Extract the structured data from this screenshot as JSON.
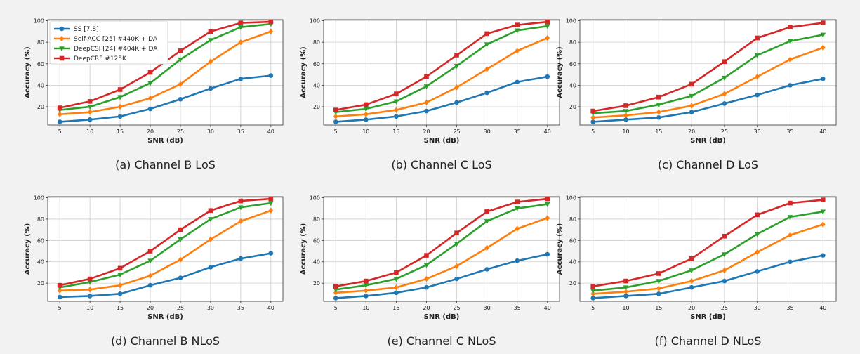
{
  "legend": [
    {
      "name": "SS [7,8]",
      "color": "#1f77b4",
      "marker": "circle"
    },
    {
      "name": "Self-ACC [25] #440K + DA",
      "color": "#ff7f0e",
      "marker": "diamond"
    },
    {
      "name": "DeepCSI [24] #404K + DA",
      "color": "#2ca02c",
      "marker": "triangle-down"
    },
    {
      "name": "DeepCRF #125K",
      "color": "#d62728",
      "marker": "square"
    }
  ],
  "chart_data": [
    {
      "type": "line",
      "caption": "(a) Channel B LoS",
      "xlabel": "SNR (dB)",
      "ylabel": "Accuracy (%)",
      "x": [
        5,
        10,
        15,
        20,
        25,
        30,
        35,
        40
      ],
      "xlim": [
        3,
        42
      ],
      "ylim": [
        3,
        101
      ],
      "yticks": [
        20,
        40,
        60,
        80,
        100
      ],
      "grid": true,
      "legend_position": "top-left",
      "series": [
        {
          "name": "SS [7,8]",
          "values": [
            6,
            8,
            11,
            18,
            27,
            37,
            46,
            49
          ]
        },
        {
          "name": "Self-ACC [25] #440K + DA",
          "values": [
            13,
            15,
            20,
            28,
            41,
            62,
            80,
            90
          ]
        },
        {
          "name": "DeepCSI [24] #404K + DA",
          "values": [
            17,
            20,
            29,
            42,
            64,
            82,
            94,
            97
          ]
        },
        {
          "name": "DeepCRF #125K",
          "values": [
            19,
            25,
            36,
            52,
            72,
            90,
            98,
            99
          ]
        }
      ]
    },
    {
      "type": "line",
      "caption": "(b) Channel C LoS",
      "xlabel": "SNR (dB)",
      "ylabel": "Accuracy (%)",
      "x": [
        5,
        10,
        15,
        20,
        25,
        30,
        35,
        40
      ],
      "xlim": [
        3,
        42
      ],
      "ylim": [
        3,
        101
      ],
      "yticks": [
        20,
        40,
        60,
        80,
        100
      ],
      "grid": true,
      "series": [
        {
          "name": "SS [7,8]",
          "values": [
            6,
            8,
            11,
            16,
            24,
            33,
            43,
            48
          ]
        },
        {
          "name": "Self-ACC [25] #440K + DA",
          "values": [
            11,
            13,
            17,
            24,
            38,
            55,
            72,
            84
          ]
        },
        {
          "name": "DeepCSI [24] #404K + DA",
          "values": [
            15,
            18,
            25,
            39,
            58,
            78,
            91,
            95
          ]
        },
        {
          "name": "DeepCRF #125K",
          "values": [
            17,
            22,
            32,
            48,
            68,
            88,
            96,
            99
          ]
        }
      ]
    },
    {
      "type": "line",
      "caption": "(c) Channel D LoS",
      "xlabel": "SNR (dB)",
      "ylabel": "Accuracy (%)",
      "x": [
        5,
        10,
        15,
        20,
        25,
        30,
        35,
        40
      ],
      "xlim": [
        3,
        42
      ],
      "ylim": [
        3,
        101
      ],
      "yticks": [
        20,
        40,
        60,
        80,
        100
      ],
      "grid": true,
      "series": [
        {
          "name": "SS [7,8]",
          "values": [
            6,
            8,
            10,
            15,
            23,
            31,
            40,
            46
          ]
        },
        {
          "name": "Self-ACC [25] #440K + DA",
          "values": [
            10,
            12,
            15,
            21,
            32,
            48,
            64,
            75
          ]
        },
        {
          "name": "DeepCSI [24] #404K + DA",
          "values": [
            14,
            16,
            22,
            30,
            47,
            68,
            81,
            87
          ]
        },
        {
          "name": "DeepCRF #125K",
          "values": [
            16,
            21,
            29,
            41,
            62,
            84,
            94,
            98
          ]
        }
      ]
    },
    {
      "type": "line",
      "caption": "(d) Channel B NLoS",
      "xlabel": "SNR (dB)",
      "ylabel": "Accuracy (%)",
      "x": [
        5,
        10,
        15,
        20,
        25,
        30,
        35,
        40
      ],
      "xlim": [
        3,
        42
      ],
      "ylim": [
        3,
        101
      ],
      "yticks": [
        20,
        40,
        60,
        80,
        100
      ],
      "grid": true,
      "series": [
        {
          "name": "SS [7,8]",
          "values": [
            7,
            8,
            10,
            18,
            25,
            35,
            43,
            48
          ]
        },
        {
          "name": "Self-ACC [25] #440K + DA",
          "values": [
            13,
            14,
            18,
            27,
            42,
            61,
            78,
            88
          ]
        },
        {
          "name": "DeepCSI [24] #404K + DA",
          "values": [
            16,
            21,
            28,
            41,
            61,
            80,
            91,
            95
          ]
        },
        {
          "name": "DeepCRF #125K",
          "values": [
            18,
            24,
            34,
            50,
            70,
            88,
            97,
            99
          ]
        }
      ]
    },
    {
      "type": "line",
      "caption": "(e) Channel C NLoS",
      "xlabel": "SNR (dB)",
      "ylabel": "Accuracy (%)",
      "x": [
        5,
        10,
        15,
        20,
        25,
        30,
        35,
        40
      ],
      "xlim": [
        3,
        42
      ],
      "ylim": [
        3,
        101
      ],
      "yticks": [
        20,
        40,
        60,
        80,
        100
      ],
      "grid": true,
      "series": [
        {
          "name": "SS [7,8]",
          "values": [
            6,
            8,
            11,
            16,
            24,
            33,
            41,
            47
          ]
        },
        {
          "name": "Self-ACC [25] #440K + DA",
          "values": [
            11,
            13,
            16,
            24,
            36,
            53,
            71,
            81
          ]
        },
        {
          "name": "DeepCSI [24] #404K + DA",
          "values": [
            14,
            18,
            24,
            37,
            57,
            78,
            90,
            94
          ]
        },
        {
          "name": "DeepCRF #125K",
          "values": [
            17,
            22,
            30,
            46,
            67,
            87,
            96,
            99
          ]
        }
      ]
    },
    {
      "type": "line",
      "caption": "(f) Channel D NLoS",
      "xlabel": "SNR (dB)",
      "ylabel": "Accuracy (%)",
      "x": [
        5,
        10,
        15,
        20,
        25,
        30,
        35,
        40
      ],
      "xlim": [
        3,
        42
      ],
      "ylim": [
        3,
        101
      ],
      "yticks": [
        20,
        40,
        60,
        80,
        100
      ],
      "grid": true,
      "series": [
        {
          "name": "SS [7,8]",
          "values": [
            6,
            8,
            10,
            16,
            22,
            31,
            40,
            46
          ]
        },
        {
          "name": "Self-ACC [25] #440K + DA",
          "values": [
            10,
            12,
            15,
            22,
            32,
            49,
            65,
            75
          ]
        },
        {
          "name": "DeepCSI [24] #404K + DA",
          "values": [
            13,
            16,
            22,
            32,
            47,
            66,
            82,
            87
          ]
        },
        {
          "name": "DeepCRF #125K",
          "values": [
            17,
            22,
            29,
            43,
            64,
            84,
            95,
            98
          ]
        }
      ]
    }
  ]
}
